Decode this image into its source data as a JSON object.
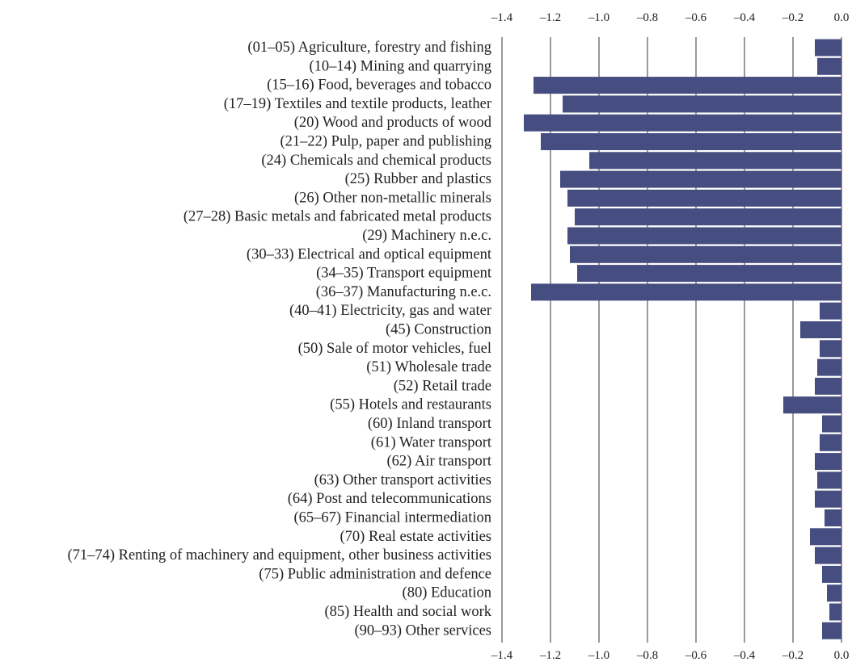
{
  "chart_data": {
    "type": "bar",
    "orientation": "horizontal",
    "categories": [
      "(01–05) Agriculture, forestry and fishing",
      "(10–14) Mining and quarrying",
      "(15–16) Food, beverages and tobacco",
      "(17–19) Textiles and textile products, leather",
      "(20) Wood and products of wood",
      "(21–22) Pulp, paper and publishing",
      "(24) Chemicals and chemical products",
      "(25) Rubber and plastics",
      "(26) Other non-metallic minerals",
      "(27–28) Basic metals and fabricated metal products",
      "(29) Machinery n.e.c.",
      "(30–33) Electrical and optical equipment",
      "(34–35) Transport equipment",
      "(36–37) Manufacturing n.e.c.",
      "(40–41) Electricity, gas and water",
      "(45) Construction",
      "(50) Sale of motor vehicles, fuel",
      "(51) Wholesale trade",
      "(52) Retail trade",
      "(55) Hotels and restaurants",
      "(60) Inland transport",
      "(61) Water transport",
      "(62) Air transport",
      "(63) Other transport activities",
      "(64) Post and telecommunications",
      "(65–67) Financial intermediation",
      "(70) Real estate activities",
      "(71–74) Renting of machinery and equipment, other business activities",
      "(75) Public administration and defence",
      "(80) Education",
      "(85) Health and social work",
      "(90–93) Other services"
    ],
    "values": [
      -0.11,
      -0.1,
      -1.27,
      -1.15,
      -1.31,
      -1.24,
      -1.04,
      -1.16,
      -1.13,
      -1.1,
      -1.13,
      -1.12,
      -1.09,
      -1.28,
      -0.09,
      -0.17,
      -0.09,
      -0.1,
      -0.11,
      -0.24,
      -0.08,
      -0.09,
      -0.11,
      -0.1,
      -0.11,
      -0.07,
      -0.13,
      -0.11,
      -0.08,
      -0.06,
      -0.05,
      -0.08
    ],
    "xticks": [
      -1.4,
      -1.2,
      -1.0,
      -0.8,
      -0.6,
      -0.4,
      -0.2,
      0.0
    ],
    "xtick_labels": [
      "–1.4",
      "–1.2",
      "–1.0",
      "–0.8",
      "–0.6",
      "–0.4",
      "–0.2",
      "0.0"
    ],
    "xlim": [
      -1.4,
      0.0
    ],
    "grid": true,
    "axis_ticks_position": "top and bottom",
    "title": "",
    "xlabel": "",
    "ylabel": "",
    "bar_color": "#464d80"
  }
}
